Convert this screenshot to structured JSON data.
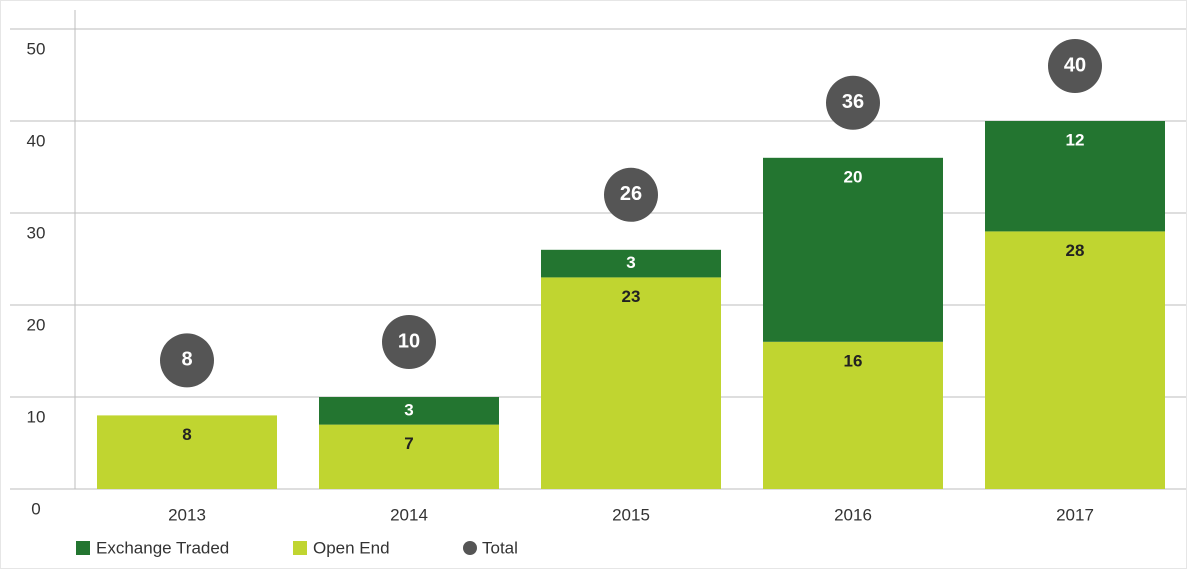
{
  "chart_data": {
    "type": "bar",
    "stacked": true,
    "categories": [
      "2013",
      "2014",
      "2015",
      "2016",
      "2017"
    ],
    "series": [
      {
        "name": "Exchange Traded",
        "color": "#237530",
        "values": [
          null,
          3,
          3,
          20,
          12
        ]
      },
      {
        "name": "Open End",
        "color": "#c0d530",
        "values": [
          8,
          7,
          23,
          16,
          28
        ]
      },
      {
        "name": "Total",
        "color": "#555555",
        "type": "marker",
        "values": [
          8,
          10,
          26,
          36,
          40
        ]
      }
    ],
    "ylim": [
      0,
      50
    ],
    "yticks": [
      0,
      10,
      20,
      30,
      40,
      50
    ],
    "grid": true,
    "legend": "bottom-left"
  }
}
